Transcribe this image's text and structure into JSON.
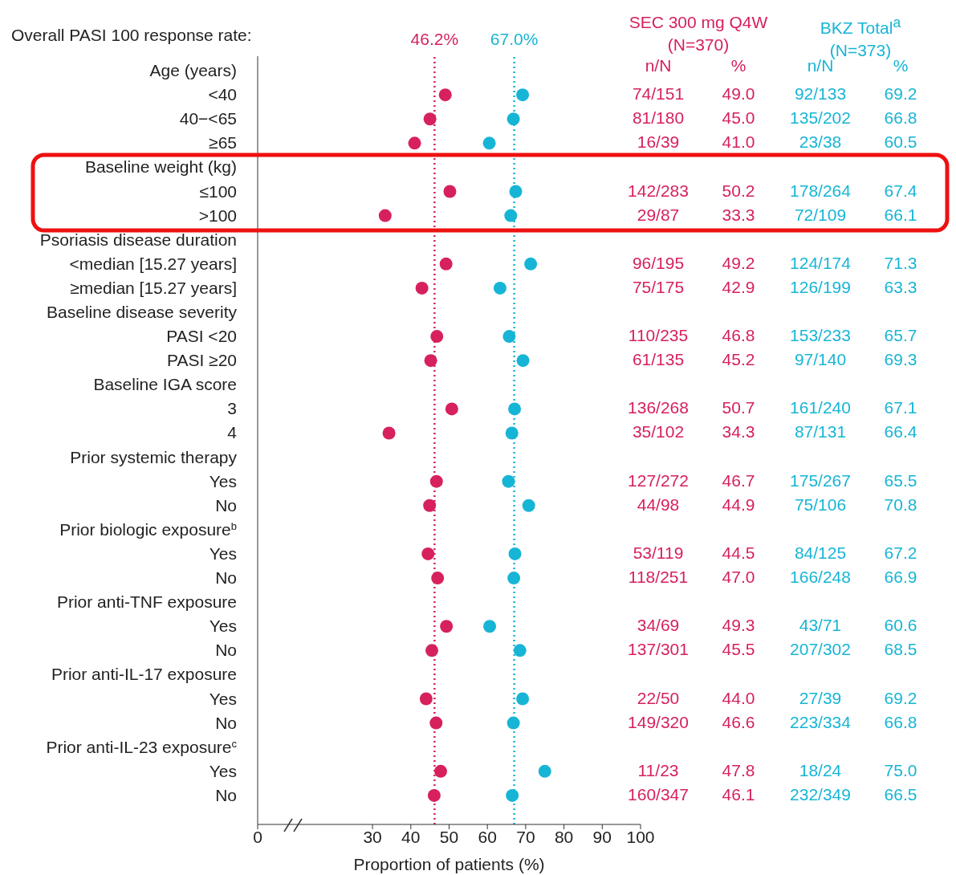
{
  "chart_data": {
    "type": "scatter",
    "orientation": "horizontal",
    "xlabel": "Proportion of patients (%)",
    "marker": "circle",
    "categories": [
      "Age (years)",
      "<40",
      "40−<65",
      "≥65",
      "Baseline weight (kg)",
      "≤100",
      ">100",
      "Psoriasis disease duration",
      "<median [15.27 years]",
      "≥median [15.27 years]",
      "Baseline disease severity",
      "PASI <20",
      "PASI ≥20",
      "Baseline IGA score",
      "3",
      "4",
      "Prior systemic therapy",
      "Yes",
      "No",
      "Prior biologic exposure$^{b}$",
      "Yes",
      "No",
      "Prior anti-TNF exposure",
      "Yes",
      "No",
      "Prior anti-IL-17 exposure",
      "Yes",
      "No",
      "Prior anti-IL-23 exposure$^{c}$",
      "Yes",
      "No"
    ],
    "xlim": [
      0,
      100
    ],
    "xticks": [
      0,
      30,
      40,
      50,
      60,
      70,
      80,
      90,
      100
    ],
    "series": [
      {
        "name": "SEC 300 mg Q4W (N=370)",
        "color": "#d6215c",
        "values": [
          null,
          49.0,
          45.0,
          41.0,
          null,
          50.2,
          33.3,
          null,
          49.2,
          42.9,
          null,
          46.8,
          45.2,
          null,
          50.7,
          34.3,
          null,
          46.7,
          44.9,
          null,
          44.5,
          47.0,
          null,
          49.3,
          45.5,
          null,
          44.0,
          46.6,
          null,
          47.8,
          46.1
        ],
        "value_labels": [
          null,
          "49.0",
          "45.0",
          "41.0",
          null,
          "50.2",
          "33.3",
          null,
          "49.2",
          "42.9",
          null,
          "46.8",
          "45.2",
          null,
          "50.7",
          "34.3",
          null,
          "46.7",
          "44.9",
          null,
          "44.5",
          "47.0",
          null,
          "49.3",
          "45.5",
          null,
          "44.0",
          "46.6",
          null,
          "47.8",
          "46.1"
        ]
      },
      {
        "name": "BKZ Total$^{a}$ (N=373)",
        "color": "#17b5d5",
        "values": [
          null,
          69.2,
          66.8,
          60.5,
          null,
          67.4,
          66.1,
          null,
          71.3,
          63.3,
          null,
          65.7,
          69.3,
          null,
          67.1,
          66.4,
          null,
          65.5,
          70.8,
          null,
          67.2,
          66.9,
          null,
          60.6,
          68.5,
          null,
          69.2,
          66.8,
          null,
          75.0,
          66.5
        ],
        "value_labels": [
          null,
          "69.2",
          "66.8",
          "60.5",
          null,
          "67.4",
          "66.1",
          null,
          "71.3",
          "63.3",
          null,
          "65.7",
          "69.3",
          null,
          "67.1",
          "66.4",
          null,
          "65.5",
          "70.8",
          null,
          "67.2",
          "66.9",
          null,
          "60.6",
          "68.5",
          null,
          "69.2",
          "66.8",
          null,
          "75.0",
          "66.5"
        ]
      }
    ],
    "ref_lines": [
      {
        "axis": "x",
        "value": 46.2,
        "label": "46.2%",
        "color": "#d6215c",
        "line_style": "dotted"
      },
      {
        "axis": "x",
        "value": 67.0,
        "label": "67.0%",
        "color": "#17b5d5",
        "line_style": "dotted"
      }
    ],
    "annotations": [
      "Overall PASI 100 response rate:",
      "n/N",
      "%",
      "n/N",
      "%",
      "74/151",
      "92/133",
      "81/180",
      "135/202",
      "16/39",
      "23/38",
      "142/283",
      "178/264",
      "29/87",
      "72/109",
      "96/195",
      "124/174",
      "75/175",
      "126/199",
      "110/235",
      "153/233",
      "61/135",
      "97/140",
      "136/268",
      "161/240",
      "35/102",
      "87/131",
      "127/272",
      "175/267",
      "44/98",
      "75/106",
      "53/119",
      "84/125",
      "118/251",
      "166/248",
      "34/69",
      "43/71",
      "137/301",
      "207/302",
      "22/50",
      "27/39",
      "149/320",
      "223/334",
      "11/23",
      "18/24",
      "160/347",
      "232/349"
    ]
  }
}
